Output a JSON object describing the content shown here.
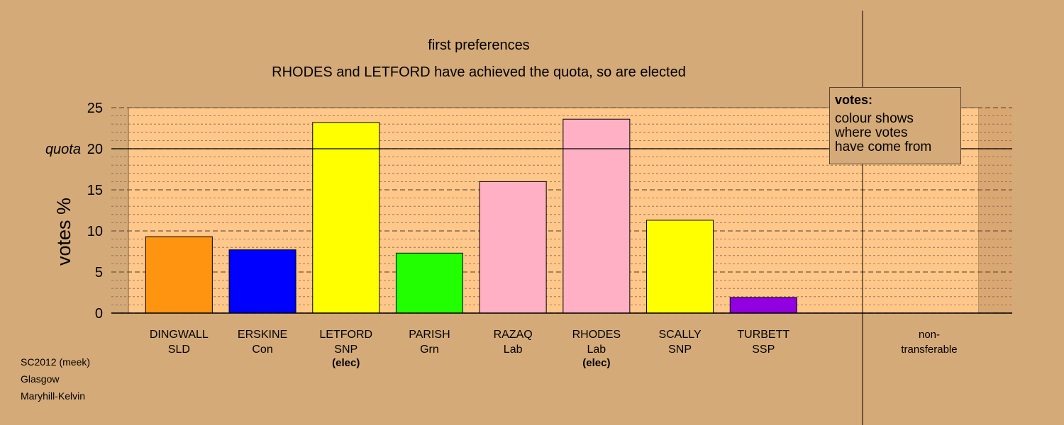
{
  "chart_data": {
    "type": "bar",
    "title": "first preferences",
    "subtitle": "RHODES and LETFORD have achieved the quota, so are elected",
    "ylabel": "votes %",
    "ylim": [
      0,
      25
    ],
    "yticks": [
      0,
      5,
      10,
      15,
      20,
      25
    ],
    "quota": 20,
    "quota_label": "quota",
    "grid": true,
    "categories": [
      {
        "name": "DINGWALL",
        "party": "SLD",
        "status": ""
      },
      {
        "name": "ERSKINE",
        "party": "Con",
        "status": ""
      },
      {
        "name": "LETFORD",
        "party": "SNP",
        "status": "(elec)"
      },
      {
        "name": "PARISH",
        "party": "Grn",
        "status": ""
      },
      {
        "name": "RAZAQ",
        "party": "Lab",
        "status": ""
      },
      {
        "name": "RHODES",
        "party": "Lab",
        "status": "(elec)"
      },
      {
        "name": "SCALLY",
        "party": "SNP",
        "status": ""
      },
      {
        "name": "TURBETT",
        "party": "SSP",
        "status": ""
      }
    ],
    "values": [
      9.3,
      7.7,
      23.2,
      7.3,
      16.0,
      23.6,
      11.3,
      1.9
    ],
    "colors": [
      "#ff9410",
      "#0000ff",
      "#ffff00",
      "#22ff00",
      "#ffb0c4",
      "#ffb0c4",
      "#ffff00",
      "#9000e0"
    ],
    "extra_column": {
      "line1": "non-",
      "line2": "transferable"
    },
    "legend": {
      "title": "votes:",
      "lines": [
        "colour shows",
        "where votes",
        "have come from"
      ],
      "position": "top-right"
    }
  },
  "captions": [
    "SC2012 (meek)",
    "Glasgow",
    "Maryhill-Kelvin"
  ],
  "colors": {
    "background": "#d4aa78",
    "plot_area": "#ffc88a",
    "right_panel": "#d9a772"
  }
}
